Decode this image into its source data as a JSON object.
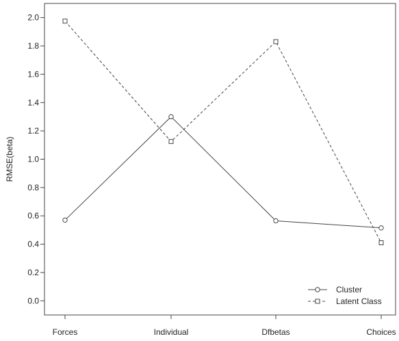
{
  "chart_data": {
    "type": "line",
    "categories": [
      "Forces",
      "Individual",
      "Dfbetas",
      "Choices"
    ],
    "series": [
      {
        "name": "Cluster",
        "values": [
          0.57,
          1.3,
          0.565,
          0.515
        ],
        "marker": "circle",
        "line_style": "solid",
        "color": "#444444"
      },
      {
        "name": "Latent Class",
        "values": [
          1.975,
          1.125,
          1.83,
          0.41
        ],
        "marker": "square",
        "line_style": "dashed",
        "color": "#444444"
      }
    ],
    "title": "",
    "xlabel": "",
    "ylabel": "RMSE(beta)",
    "ylim": [
      -0.1,
      2.1
    ],
    "yticks": [
      "0.0",
      "0.2",
      "0.4",
      "0.6",
      "0.8",
      "1.0",
      "1.2",
      "1.4",
      "1.6",
      "1.8",
      "2.0"
    ],
    "grid": false,
    "legend_position": "bottom-right"
  }
}
